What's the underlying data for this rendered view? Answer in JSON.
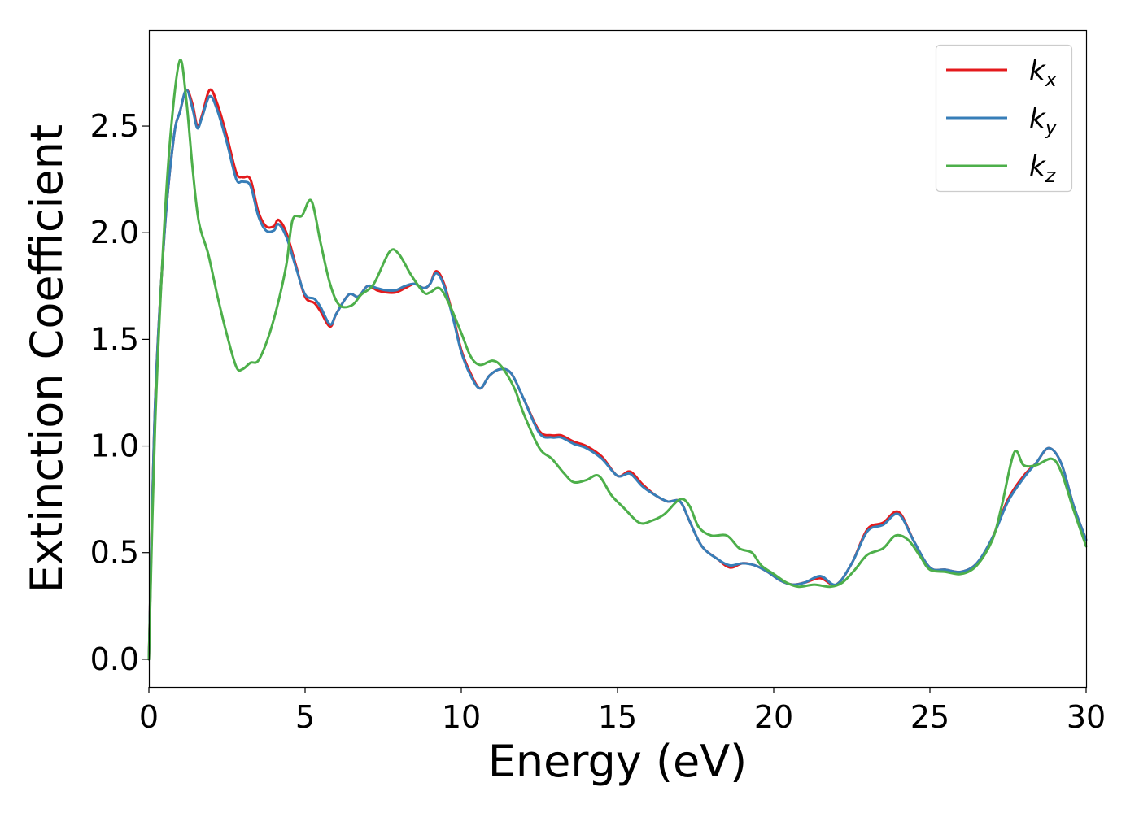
{
  "chart_data": {
    "type": "line",
    "xlabel": "Energy (eV)",
    "ylabel": "Extinction Coefficient",
    "xlim": [
      0,
      30
    ],
    "ylim": [
      -0.13,
      2.95
    ],
    "xticks": [
      0,
      5,
      10,
      15,
      20,
      25,
      30
    ],
    "xtick_labels": [
      "0",
      "5",
      "10",
      "15",
      "20",
      "25",
      "30"
    ],
    "yticks": [
      0.0,
      0.5,
      1.0,
      1.5,
      2.0,
      2.5
    ],
    "ytick_labels": [
      "0.0",
      "0.5",
      "1.0",
      "1.5",
      "2.0",
      "2.5"
    ],
    "grid": false,
    "legend_position": "top-right",
    "series": [
      {
        "name": "k_x",
        "label_main": "k",
        "label_sub": "x",
        "color": "#e41a1c",
        "points": [
          [
            0,
            0.0
          ],
          [
            0.2,
            1.2
          ],
          [
            0.5,
            2.0
          ],
          [
            0.8,
            2.45
          ],
          [
            1.0,
            2.57
          ],
          [
            1.2,
            2.67
          ],
          [
            1.4,
            2.6
          ],
          [
            1.55,
            2.5
          ],
          [
            1.7,
            2.55
          ],
          [
            1.95,
            2.67
          ],
          [
            2.2,
            2.6
          ],
          [
            2.5,
            2.45
          ],
          [
            2.8,
            2.28
          ],
          [
            3.0,
            2.26
          ],
          [
            3.25,
            2.25
          ],
          [
            3.5,
            2.1
          ],
          [
            3.75,
            2.03
          ],
          [
            4.0,
            2.03
          ],
          [
            4.15,
            2.06
          ],
          [
            4.4,
            2.0
          ],
          [
            4.7,
            1.85
          ],
          [
            5.0,
            1.7
          ],
          [
            5.3,
            1.67
          ],
          [
            5.5,
            1.63
          ],
          [
            5.8,
            1.56
          ],
          [
            6.0,
            1.62
          ],
          [
            6.4,
            1.71
          ],
          [
            6.7,
            1.7
          ],
          [
            7.0,
            1.75
          ],
          [
            7.3,
            1.73
          ],
          [
            7.6,
            1.72
          ],
          [
            7.9,
            1.72
          ],
          [
            8.2,
            1.74
          ],
          [
            8.5,
            1.76
          ],
          [
            8.8,
            1.74
          ],
          [
            9.0,
            1.76
          ],
          [
            9.2,
            1.82
          ],
          [
            9.45,
            1.76
          ],
          [
            9.75,
            1.6
          ],
          [
            10.0,
            1.45
          ],
          [
            10.3,
            1.34
          ],
          [
            10.6,
            1.27
          ],
          [
            10.9,
            1.33
          ],
          [
            11.25,
            1.36
          ],
          [
            11.6,
            1.34
          ],
          [
            12.0,
            1.22
          ],
          [
            12.5,
            1.07
          ],
          [
            12.9,
            1.05
          ],
          [
            13.2,
            1.05
          ],
          [
            13.6,
            1.02
          ],
          [
            14.0,
            1.0
          ],
          [
            14.5,
            0.95
          ],
          [
            15.0,
            0.86
          ],
          [
            15.4,
            0.88
          ],
          [
            15.8,
            0.82
          ],
          [
            16.2,
            0.77
          ],
          [
            16.6,
            0.74
          ],
          [
            17.0,
            0.74
          ],
          [
            17.3,
            0.65
          ],
          [
            17.7,
            0.53
          ],
          [
            18.2,
            0.47
          ],
          [
            18.6,
            0.43
          ],
          [
            19.0,
            0.45
          ],
          [
            19.4,
            0.44
          ],
          [
            19.8,
            0.41
          ],
          [
            20.2,
            0.37
          ],
          [
            20.6,
            0.35
          ],
          [
            21.0,
            0.36
          ],
          [
            21.5,
            0.38
          ],
          [
            22.0,
            0.35
          ],
          [
            22.5,
            0.45
          ],
          [
            23.0,
            0.61
          ],
          [
            23.5,
            0.64
          ],
          [
            24.0,
            0.69
          ],
          [
            24.5,
            0.55
          ],
          [
            25.0,
            0.43
          ],
          [
            25.5,
            0.42
          ],
          [
            26.0,
            0.41
          ],
          [
            26.5,
            0.45
          ],
          [
            27.0,
            0.57
          ],
          [
            27.5,
            0.75
          ],
          [
            28.0,
            0.86
          ],
          [
            28.4,
            0.92
          ],
          [
            28.8,
            0.99
          ],
          [
            29.2,
            0.92
          ],
          [
            29.6,
            0.72
          ],
          [
            30.0,
            0.56
          ]
        ]
      },
      {
        "name": "k_y",
        "label_main": "k",
        "label_sub": "y",
        "color": "#377eb8",
        "points": [
          [
            0,
            0.0
          ],
          [
            0.2,
            1.2
          ],
          [
            0.5,
            2.0
          ],
          [
            0.8,
            2.45
          ],
          [
            1.0,
            2.57
          ],
          [
            1.2,
            2.67
          ],
          [
            1.4,
            2.58
          ],
          [
            1.55,
            2.49
          ],
          [
            1.7,
            2.54
          ],
          [
            1.95,
            2.64
          ],
          [
            2.2,
            2.57
          ],
          [
            2.5,
            2.42
          ],
          [
            2.8,
            2.25
          ],
          [
            3.0,
            2.24
          ],
          [
            3.25,
            2.22
          ],
          [
            3.5,
            2.08
          ],
          [
            3.75,
            2.01
          ],
          [
            4.0,
            2.01
          ],
          [
            4.15,
            2.04
          ],
          [
            4.4,
            1.98
          ],
          [
            4.7,
            1.84
          ],
          [
            5.0,
            1.71
          ],
          [
            5.3,
            1.69
          ],
          [
            5.5,
            1.65
          ],
          [
            5.8,
            1.57
          ],
          [
            6.0,
            1.62
          ],
          [
            6.4,
            1.71
          ],
          [
            6.7,
            1.7
          ],
          [
            7.0,
            1.75
          ],
          [
            7.3,
            1.74
          ],
          [
            7.6,
            1.73
          ],
          [
            7.9,
            1.73
          ],
          [
            8.2,
            1.75
          ],
          [
            8.5,
            1.76
          ],
          [
            8.8,
            1.74
          ],
          [
            9.0,
            1.76
          ],
          [
            9.2,
            1.81
          ],
          [
            9.45,
            1.75
          ],
          [
            9.75,
            1.59
          ],
          [
            10.0,
            1.44
          ],
          [
            10.3,
            1.33
          ],
          [
            10.6,
            1.27
          ],
          [
            10.9,
            1.33
          ],
          [
            11.25,
            1.36
          ],
          [
            11.6,
            1.34
          ],
          [
            12.0,
            1.22
          ],
          [
            12.5,
            1.06
          ],
          [
            12.9,
            1.04
          ],
          [
            13.2,
            1.04
          ],
          [
            13.6,
            1.01
          ],
          [
            14.0,
            0.99
          ],
          [
            14.5,
            0.94
          ],
          [
            15.0,
            0.86
          ],
          [
            15.4,
            0.87
          ],
          [
            15.8,
            0.81
          ],
          [
            16.2,
            0.77
          ],
          [
            16.6,
            0.74
          ],
          [
            17.0,
            0.74
          ],
          [
            17.3,
            0.65
          ],
          [
            17.7,
            0.53
          ],
          [
            18.2,
            0.47
          ],
          [
            18.6,
            0.44
          ],
          [
            19.0,
            0.45
          ],
          [
            19.4,
            0.44
          ],
          [
            19.8,
            0.41
          ],
          [
            20.2,
            0.37
          ],
          [
            20.6,
            0.35
          ],
          [
            21.0,
            0.36
          ],
          [
            21.5,
            0.39
          ],
          [
            22.0,
            0.35
          ],
          [
            22.5,
            0.45
          ],
          [
            23.0,
            0.6
          ],
          [
            23.5,
            0.63
          ],
          [
            24.0,
            0.68
          ],
          [
            24.5,
            0.55
          ],
          [
            25.0,
            0.43
          ],
          [
            25.5,
            0.42
          ],
          [
            26.0,
            0.41
          ],
          [
            26.5,
            0.45
          ],
          [
            27.0,
            0.57
          ],
          [
            27.5,
            0.74
          ],
          [
            28.0,
            0.85
          ],
          [
            28.4,
            0.92
          ],
          [
            28.8,
            0.99
          ],
          [
            29.2,
            0.92
          ],
          [
            29.6,
            0.72
          ],
          [
            30.0,
            0.56
          ]
        ]
      },
      {
        "name": "k_z",
        "label_main": "k",
        "label_sub": "z",
        "color": "#4daf4a",
        "points": [
          [
            0,
            0.0
          ],
          [
            0.2,
            1.1
          ],
          [
            0.5,
            2.05
          ],
          [
            0.75,
            2.55
          ],
          [
            1.0,
            2.81
          ],
          [
            1.2,
            2.62
          ],
          [
            1.4,
            2.3
          ],
          [
            1.6,
            2.05
          ],
          [
            1.9,
            1.9
          ],
          [
            2.2,
            1.7
          ],
          [
            2.5,
            1.52
          ],
          [
            2.8,
            1.37
          ],
          [
            3.0,
            1.36
          ],
          [
            3.25,
            1.39
          ],
          [
            3.5,
            1.4
          ],
          [
            3.8,
            1.5
          ],
          [
            4.1,
            1.65
          ],
          [
            4.4,
            1.85
          ],
          [
            4.6,
            2.06
          ],
          [
            4.9,
            2.08
          ],
          [
            5.2,
            2.15
          ],
          [
            5.5,
            1.95
          ],
          [
            5.8,
            1.76
          ],
          [
            6.1,
            1.66
          ],
          [
            6.5,
            1.66
          ],
          [
            6.8,
            1.71
          ],
          [
            7.2,
            1.76
          ],
          [
            7.7,
            1.91
          ],
          [
            8.0,
            1.9
          ],
          [
            8.4,
            1.8
          ],
          [
            8.8,
            1.72
          ],
          [
            9.0,
            1.72
          ],
          [
            9.3,
            1.74
          ],
          [
            9.6,
            1.67
          ],
          [
            10.0,
            1.53
          ],
          [
            10.3,
            1.42
          ],
          [
            10.6,
            1.38
          ],
          [
            11.0,
            1.4
          ],
          [
            11.3,
            1.37
          ],
          [
            11.7,
            1.27
          ],
          [
            12.0,
            1.15
          ],
          [
            12.5,
            0.99
          ],
          [
            12.9,
            0.94
          ],
          [
            13.3,
            0.87
          ],
          [
            13.6,
            0.83
          ],
          [
            14.0,
            0.84
          ],
          [
            14.4,
            0.86
          ],
          [
            14.8,
            0.77
          ],
          [
            15.2,
            0.71
          ],
          [
            15.7,
            0.64
          ],
          [
            16.1,
            0.65
          ],
          [
            16.5,
            0.68
          ],
          [
            17.0,
            0.75
          ],
          [
            17.3,
            0.72
          ],
          [
            17.6,
            0.62
          ],
          [
            18.0,
            0.58
          ],
          [
            18.5,
            0.58
          ],
          [
            18.9,
            0.52
          ],
          [
            19.3,
            0.5
          ],
          [
            19.6,
            0.44
          ],
          [
            20.0,
            0.4
          ],
          [
            20.4,
            0.36
          ],
          [
            20.8,
            0.34
          ],
          [
            21.3,
            0.35
          ],
          [
            21.8,
            0.34
          ],
          [
            22.2,
            0.36
          ],
          [
            22.6,
            0.42
          ],
          [
            23.0,
            0.49
          ],
          [
            23.5,
            0.52
          ],
          [
            23.9,
            0.58
          ],
          [
            24.3,
            0.56
          ],
          [
            24.7,
            0.48
          ],
          [
            25.0,
            0.42
          ],
          [
            25.5,
            0.41
          ],
          [
            26.0,
            0.4
          ],
          [
            26.5,
            0.44
          ],
          [
            27.0,
            0.56
          ],
          [
            27.3,
            0.72
          ],
          [
            27.7,
            0.97
          ],
          [
            28.0,
            0.91
          ],
          [
            28.4,
            0.91
          ],
          [
            28.9,
            0.94
          ],
          [
            29.2,
            0.88
          ],
          [
            29.6,
            0.7
          ],
          [
            30.0,
            0.53
          ]
        ]
      }
    ]
  }
}
